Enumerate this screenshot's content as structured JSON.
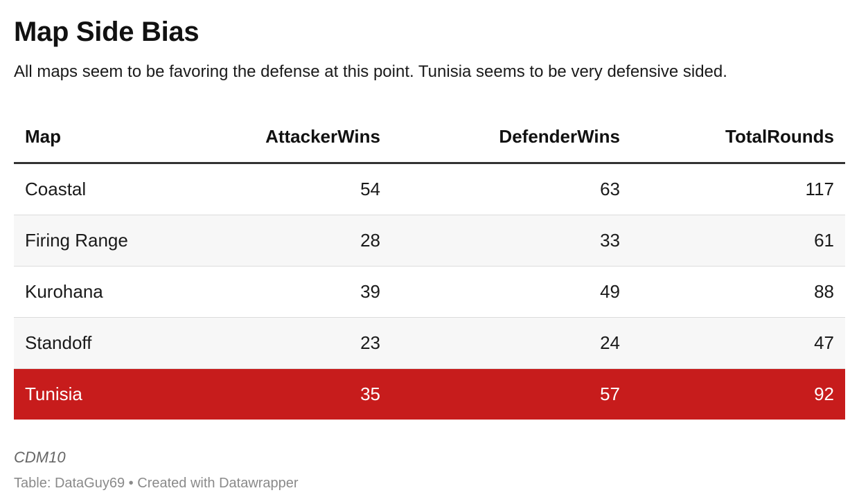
{
  "title": "Map Side Bias",
  "subtitle": "All maps seem to be favoring the defense at this point. Tunisia seems to be very defensive sided.",
  "notes": "CDM10",
  "footer": {
    "source_label": "Table:",
    "source": "DataGuy69",
    "separator": "•",
    "credit": "Created with Datawrapper"
  },
  "colors": {
    "highlight_row": "#c71c1c",
    "stripe": "#f7f7f7"
  },
  "chart_data": {
    "type": "table",
    "title": "Map Side Bias",
    "columns": [
      "Map",
      "AttackerWins",
      "DefenderWins",
      "TotalRounds"
    ],
    "rows": [
      {
        "Map": "Coastal",
        "AttackerWins": 54,
        "DefenderWins": 63,
        "TotalRounds": 117
      },
      {
        "Map": "Firing Range",
        "AttackerWins": 28,
        "DefenderWins": 33,
        "TotalRounds": 61
      },
      {
        "Map": "Kurohana",
        "AttackerWins": 39,
        "DefenderWins": 49,
        "TotalRounds": 88
      },
      {
        "Map": "Standoff",
        "AttackerWins": 23,
        "DefenderWins": 24,
        "TotalRounds": 47
      },
      {
        "Map": "Tunisia",
        "AttackerWins": 35,
        "DefenderWins": 57,
        "TotalRounds": 92
      }
    ],
    "highlighted_row": "Tunisia"
  }
}
